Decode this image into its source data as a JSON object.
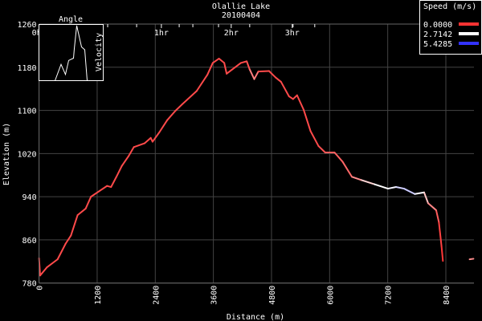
{
  "chart_data": {
    "type": "line",
    "title": "Olallie Lake",
    "subtitle": "20100404",
    "xlabel": "Distance (m)",
    "ylabel": "Elevation (m)",
    "xlim": [
      0,
      8980
    ],
    "ylim": [
      780,
      1260
    ],
    "grid": true,
    "x_ticks": [
      0,
      1200,
      2400,
      3600,
      4800,
      6000,
      7200,
      8400
    ],
    "y_ticks": [
      780,
      860,
      940,
      1020,
      1100,
      1180,
      1260
    ],
    "time_axis": {
      "labels": [
        {
          "label": "0hr",
          "distance": 0
        },
        {
          "label": "1hr",
          "distance": 2526
        },
        {
          "label": "2hr",
          "distance": 3968
        },
        {
          "label": "3hr",
          "distance": 5228
        }
      ],
      "minor_tick_distances": [
        1417,
        2015,
        2894,
        3176,
        3706,
        4350,
        5245,
        5693
      ]
    },
    "legend": {
      "title": "Speed (m/s)",
      "placement": "top-right",
      "entries": [
        {
          "label": "0.0000",
          "color": "#ff3333"
        },
        {
          "label": "2.7142",
          "color": "#ffffff"
        },
        {
          "label": "5.4285",
          "color": "#3333ff"
        }
      ]
    },
    "series": [
      {
        "x": [
          0,
          23,
          161,
          383,
          549,
          658,
          797,
          963,
          1072,
          1404,
          1487,
          1598,
          1709,
          1847,
          1958,
          2178,
          2306,
          2344,
          2481,
          2647,
          2813,
          2952,
          3255,
          3476,
          3587,
          3715,
          3824,
          3874,
          4167,
          4288,
          4349,
          4444,
          4527,
          4749,
          4885,
          4996,
          5162,
          5245,
          5328,
          5465,
          5604,
          5770,
          5908,
          6101,
          6267,
          6459,
          6653,
          6930,
          7205,
          7371,
          7537,
          7759,
          7951,
          8034,
          8200,
          8256,
          8311,
          8339,
          null,
          8891,
          8970
        ],
        "y": [
          826,
          794,
          809,
          824,
          853,
          868,
          906,
          918,
          940,
          960,
          958,
          977,
          997,
          1015,
          1032,
          1039,
          1049,
          1042,
          1059,
          1082,
          1099,
          1111,
          1136,
          1166,
          1188,
          1196,
          1188,
          1168,
          1188,
          1191,
          1176,
          1158,
          1172,
          1173,
          1161,
          1153,
          1126,
          1121,
          1128,
          1101,
          1062,
          1034,
          1022,
          1022,
          1005,
          977,
          971,
          963,
          955,
          958,
          955,
          945,
          948,
          928,
          915,
          893,
          848,
          821,
          null,
          824,
          825
        ],
        "speed": [
          0.3,
          0.3,
          0.3,
          0.3,
          0.3,
          0.3,
          0.3,
          0.3,
          0.3,
          0.3,
          0.3,
          0.3,
          0.3,
          0.3,
          0.3,
          0.3,
          0.3,
          0.3,
          0.3,
          0.3,
          0.3,
          0.3,
          0.3,
          0.3,
          0.3,
          0.3,
          0.3,
          0.3,
          0.3,
          0.3,
          0.5,
          1.5,
          0.3,
          0.3,
          0.3,
          0.3,
          0.3,
          0.3,
          0.3,
          0.3,
          0.3,
          0.3,
          0.5,
          0.6,
          0.6,
          0.8,
          1.6,
          2.7,
          2.7,
          3.0,
          3.6,
          3.2,
          2.4,
          1.4,
          0.8,
          0.3,
          0.1,
          0.0,
          null,
          1.2,
          1.2
        ]
      }
    ],
    "inset": {
      "title": "Angle",
      "side_label": "Velocity",
      "x": [
        0,
        7.5,
        13,
        17,
        23,
        24,
        27,
        33,
        37,
        40
      ],
      "y": [
        0,
        29,
        11,
        36,
        40,
        57,
        98,
        60,
        55,
        0
      ]
    }
  }
}
